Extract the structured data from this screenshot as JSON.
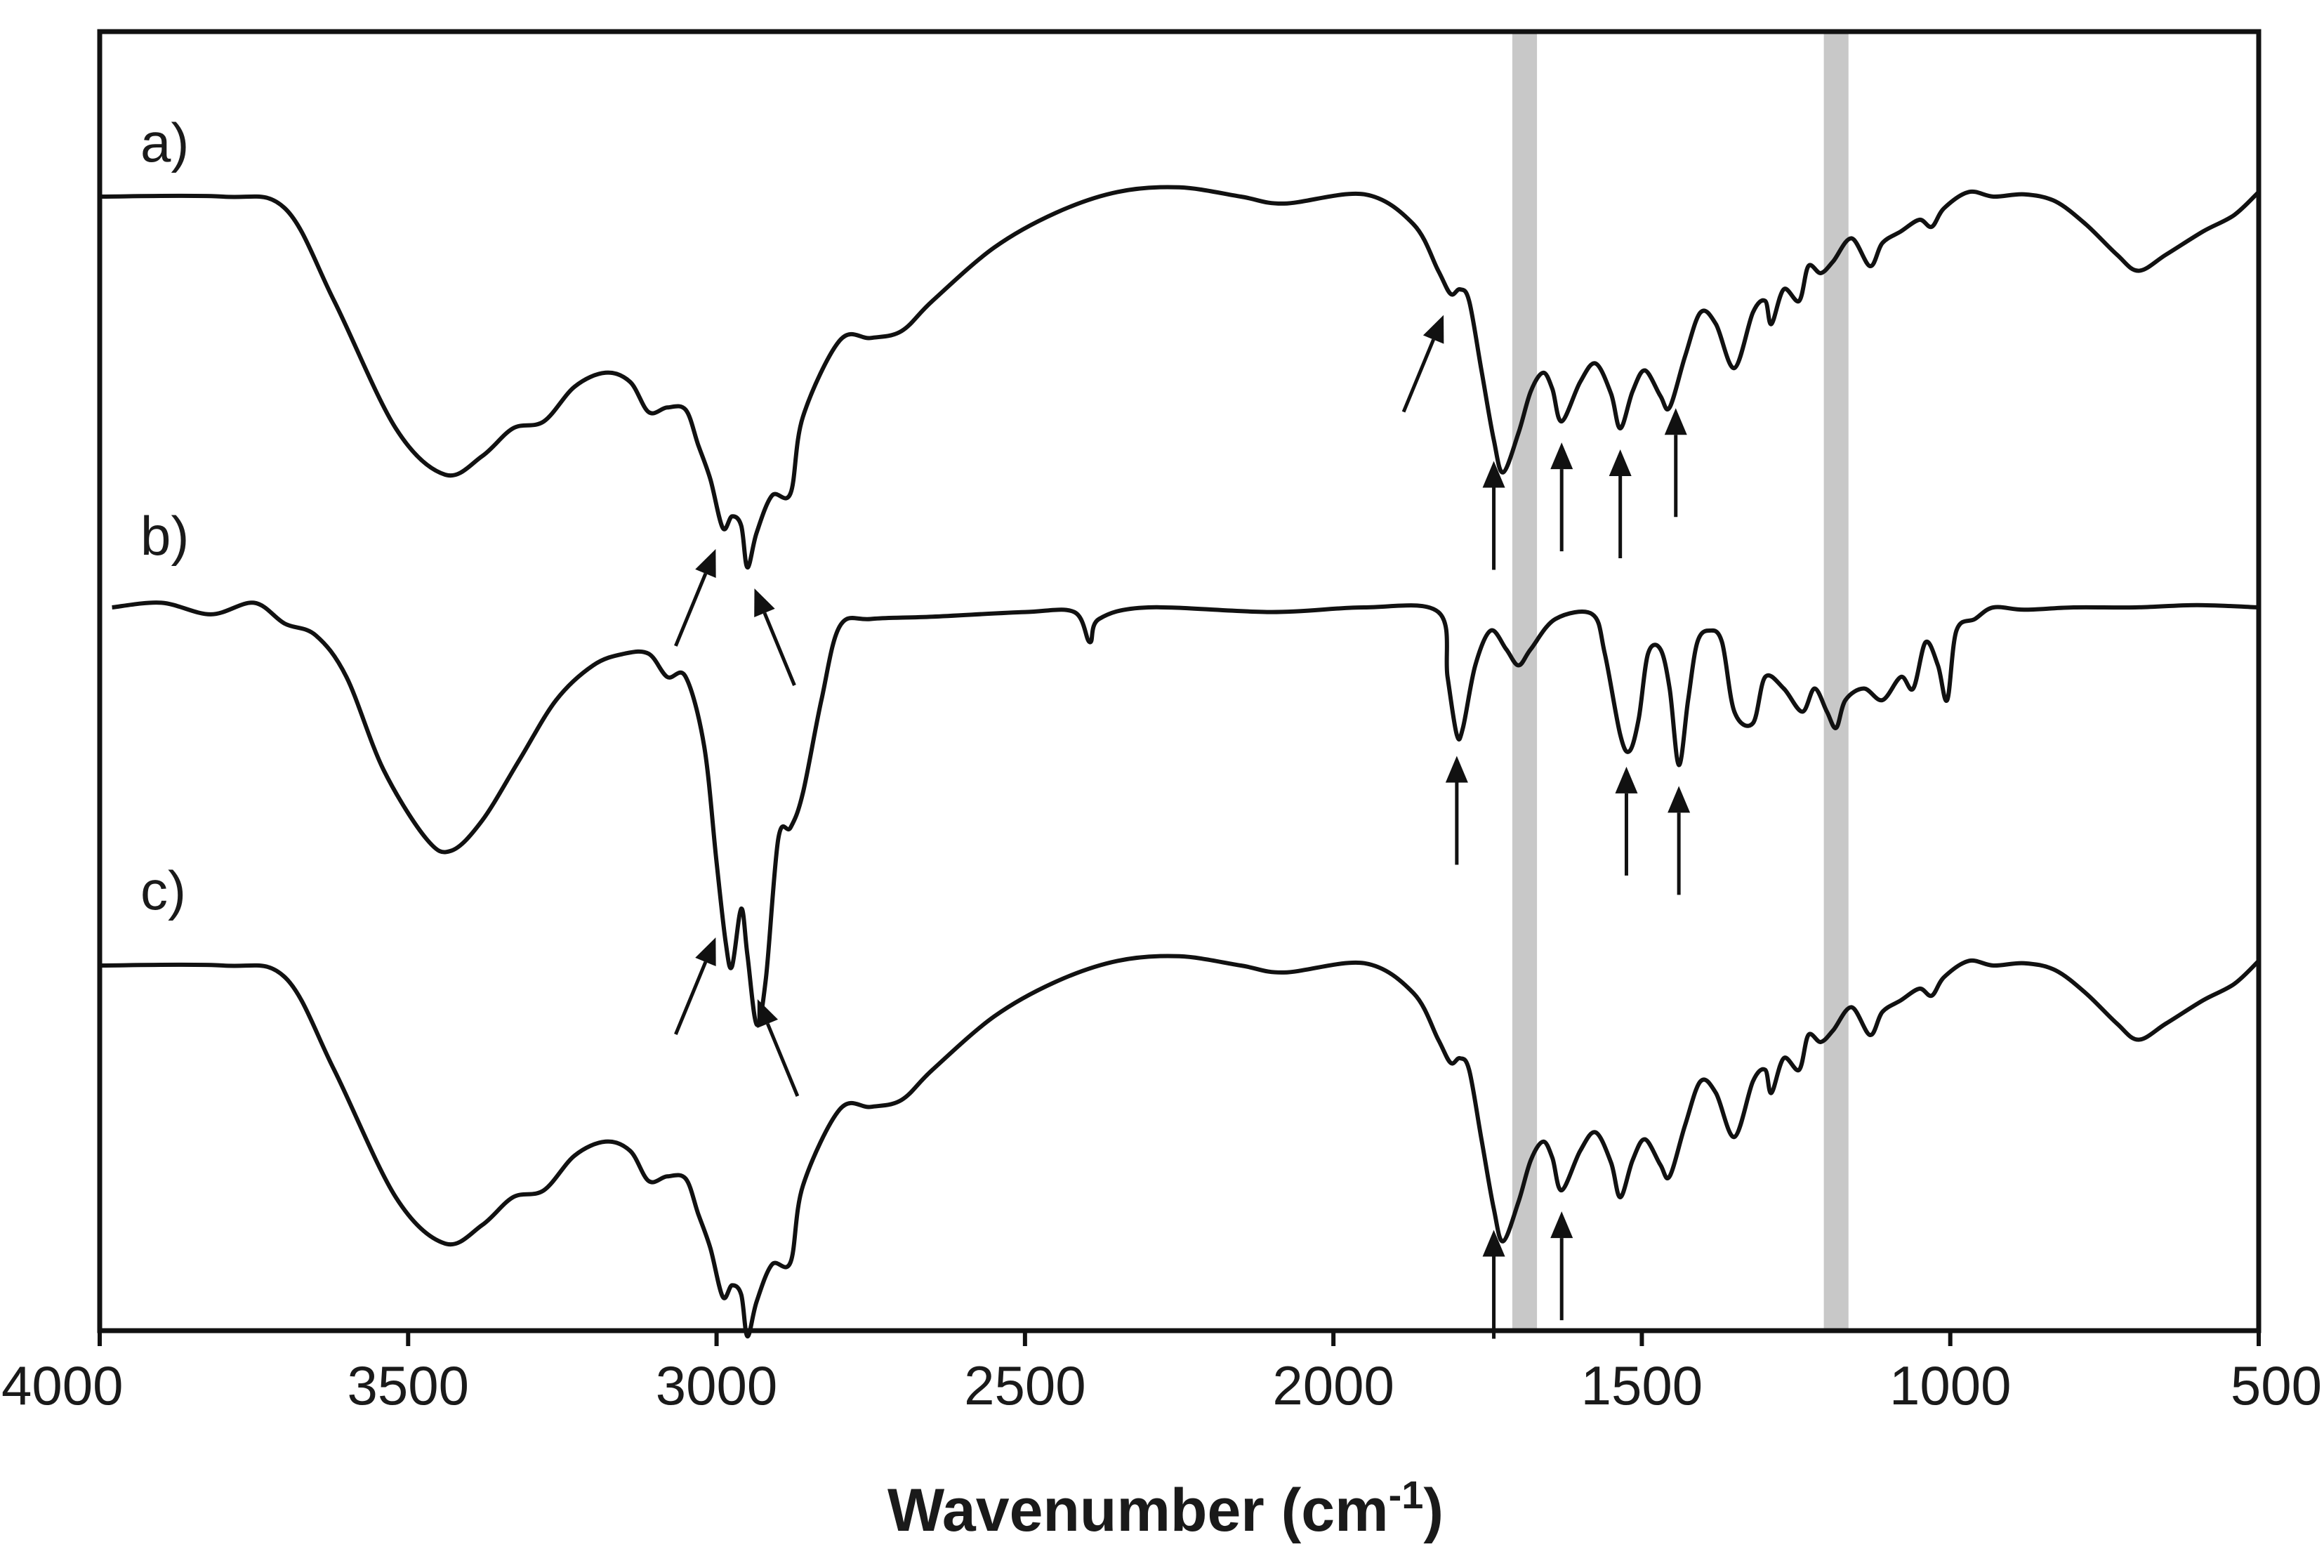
{
  "chart_data": {
    "type": "line",
    "title": "",
    "xlabel": "Wavenumber (cm",
    "xlabel_sup": "-1",
    "xlabel_close": ")",
    "ylabel": "",
    "x_reversed": true,
    "xlim": [
      4000,
      500
    ],
    "x_ticks": [
      4000,
      3500,
      3000,
      2500,
      2000,
      1500,
      1000,
      500
    ],
    "x_tick_labels": [
      "4000",
      "3500",
      "3000",
      "2500",
      "2000",
      "1500",
      "1000",
      "500"
    ],
    "y_units": "offset transmittance (arbitrary)",
    "highlight_bands": [
      {
        "center": 1690,
        "width": 40,
        "color": "#c8c8c8"
      },
      {
        "center": 1185,
        "width": 40,
        "color": "#c8c8c8"
      }
    ],
    "series": [
      {
        "name": "a)",
        "label": "a)",
        "points": [
          [
            4000,
            0
          ],
          [
            3800,
            0
          ],
          [
            3700,
            -0.05
          ],
          [
            3620,
            -0.45
          ],
          [
            3520,
            -1.0
          ],
          [
            3440,
            -1.2
          ],
          [
            3380,
            -1.12
          ],
          [
            3330,
            -1.0
          ],
          [
            3280,
            -0.97
          ],
          [
            3230,
            -0.82
          ],
          [
            3180,
            -0.76
          ],
          [
            3140,
            -0.8
          ],
          [
            3110,
            -0.93
          ],
          [
            3080,
            -0.91
          ],
          [
            3050,
            -0.92
          ],
          [
            3030,
            -1.07
          ],
          [
            3010,
            -1.22
          ],
          [
            2990,
            -1.43
          ],
          [
            2975,
            -1.38
          ],
          [
            2960,
            -1.42
          ],
          [
            2950,
            -1.6
          ],
          [
            2935,
            -1.45
          ],
          [
            2910,
            -1.29
          ],
          [
            2880,
            -1.28
          ],
          [
            2860,
            -0.95
          ],
          [
            2800,
            -0.62
          ],
          [
            2750,
            -0.61
          ],
          [
            2700,
            -0.58
          ],
          [
            2650,
            -0.45
          ],
          [
            2550,
            -0.22
          ],
          [
            2450,
            -0.07
          ],
          [
            2350,
            0.02
          ],
          [
            2250,
            0.04
          ],
          [
            2150,
            0
          ],
          [
            2080,
            -0.03
          ],
          [
            1950,
            0.01
          ],
          [
            1870,
            -0.12
          ],
          [
            1830,
            -0.32
          ],
          [
            1810,
            -0.42
          ],
          [
            1795,
            -0.4
          ],
          [
            1780,
            -0.45
          ],
          [
            1760,
            -0.75
          ],
          [
            1740,
            -1.05
          ],
          [
            1725,
            -1.19
          ],
          [
            1700,
            -1.02
          ],
          [
            1680,
            -0.84
          ],
          [
            1660,
            -0.76
          ],
          [
            1645,
            -0.83
          ],
          [
            1630,
            -0.97
          ],
          [
            1600,
            -0.8
          ],
          [
            1575,
            -0.72
          ],
          [
            1550,
            -0.85
          ],
          [
            1535,
            -1.0
          ],
          [
            1515,
            -0.84
          ],
          [
            1495,
            -0.75
          ],
          [
            1470,
            -0.86
          ],
          [
            1455,
            -0.91
          ],
          [
            1430,
            -0.69
          ],
          [
            1405,
            -0.5
          ],
          [
            1380,
            -0.55
          ],
          [
            1350,
            -0.74
          ],
          [
            1320,
            -0.5
          ],
          [
            1300,
            -0.45
          ],
          [
            1290,
            -0.55
          ],
          [
            1270,
            -0.4
          ],
          [
            1245,
            -0.45
          ],
          [
            1230,
            -0.3
          ],
          [
            1210,
            -0.33
          ],
          [
            1190,
            -0.28
          ],
          [
            1160,
            -0.18
          ],
          [
            1130,
            -0.3
          ],
          [
            1110,
            -0.2
          ],
          [
            1080,
            -0.15
          ],
          [
            1050,
            -0.1
          ],
          [
            1030,
            -0.13
          ],
          [
            1010,
            -0.05
          ],
          [
            970,
            0.02
          ],
          [
            930,
            0
          ],
          [
            880,
            0.01
          ],
          [
            830,
            -0.02
          ],
          [
            780,
            -0.12
          ],
          [
            730,
            -0.25
          ],
          [
            695,
            -0.32
          ],
          [
            650,
            -0.25
          ],
          [
            590,
            -0.15
          ],
          [
            540,
            -0.08
          ],
          [
            500,
            0.02
          ]
        ]
      },
      {
        "name": "b)",
        "label": "b)",
        "points": [
          [
            3980,
            0
          ],
          [
            3900,
            0.02
          ],
          [
            3820,
            -0.03
          ],
          [
            3750,
            0.02
          ],
          [
            3700,
            -0.07
          ],
          [
            3650,
            -0.12
          ],
          [
            3600,
            -0.3
          ],
          [
            3540,
            -0.7
          ],
          [
            3470,
            -1.0
          ],
          [
            3430,
            -1.05
          ],
          [
            3380,
            -0.92
          ],
          [
            3320,
            -0.66
          ],
          [
            3260,
            -0.4
          ],
          [
            3200,
            -0.25
          ],
          [
            3150,
            -0.2
          ],
          [
            3110,
            -0.2
          ],
          [
            3080,
            -0.3
          ],
          [
            3050,
            -0.3
          ],
          [
            3020,
            -0.6
          ],
          [
            3000,
            -1.1
          ],
          [
            2985,
            -1.45
          ],
          [
            2975,
            -1.55
          ],
          [
            2960,
            -1.3
          ],
          [
            2950,
            -1.5
          ],
          [
            2935,
            -1.8
          ],
          [
            2920,
            -1.6
          ],
          [
            2900,
            -1.0
          ],
          [
            2880,
            -0.95
          ],
          [
            2860,
            -0.8
          ],
          [
            2830,
            -0.4
          ],
          [
            2800,
            -0.08
          ],
          [
            2750,
            -0.05
          ],
          [
            2650,
            -0.04
          ],
          [
            2500,
            -0.02
          ],
          [
            2420,
            -0.02
          ],
          [
            2395,
            -0.15
          ],
          [
            2380,
            -0.05
          ],
          [
            2300,
            0
          ],
          [
            2100,
            -0.02
          ],
          [
            1950,
            0
          ],
          [
            1830,
            -0.02
          ],
          [
            1815,
            -0.3
          ],
          [
            1800,
            -0.55
          ],
          [
            1790,
            -0.52
          ],
          [
            1770,
            -0.25
          ],
          [
            1745,
            -0.1
          ],
          [
            1720,
            -0.18
          ],
          [
            1700,
            -0.25
          ],
          [
            1680,
            -0.18
          ],
          [
            1640,
            -0.05
          ],
          [
            1580,
            -0.03
          ],
          [
            1560,
            -0.2
          ],
          [
            1535,
            -0.55
          ],
          [
            1520,
            -0.62
          ],
          [
            1505,
            -0.48
          ],
          [
            1490,
            -0.2
          ],
          [
            1470,
            -0.18
          ],
          [
            1455,
            -0.35
          ],
          [
            1440,
            -0.68
          ],
          [
            1425,
            -0.4
          ],
          [
            1410,
            -0.15
          ],
          [
            1390,
            -0.1
          ],
          [
            1370,
            -0.15
          ],
          [
            1350,
            -0.45
          ],
          [
            1320,
            -0.5
          ],
          [
            1300,
            -0.3
          ],
          [
            1270,
            -0.35
          ],
          [
            1240,
            -0.45
          ],
          [
            1220,
            -0.35
          ],
          [
            1200,
            -0.45
          ],
          [
            1185,
            -0.52
          ],
          [
            1170,
            -0.4
          ],
          [
            1140,
            -0.35
          ],
          [
            1110,
            -0.4
          ],
          [
            1080,
            -0.3
          ],
          [
            1060,
            -0.35
          ],
          [
            1040,
            -0.15
          ],
          [
            1020,
            -0.25
          ],
          [
            1005,
            -0.4
          ],
          [
            990,
            -0.1
          ],
          [
            960,
            -0.05
          ],
          [
            930,
            0
          ],
          [
            880,
            -0.01
          ],
          [
            800,
            0
          ],
          [
            700,
            0
          ],
          [
            600,
            0.01
          ],
          [
            500,
            0
          ]
        ]
      },
      {
        "name": "c)",
        "label": "c)",
        "points": [
          [
            4000,
            0
          ],
          [
            3800,
            0
          ],
          [
            3700,
            -0.05
          ],
          [
            3620,
            -0.45
          ],
          [
            3520,
            -1.0
          ],
          [
            3440,
            -1.2
          ],
          [
            3380,
            -1.12
          ],
          [
            3330,
            -1.0
          ],
          [
            3280,
            -0.97
          ],
          [
            3230,
            -0.82
          ],
          [
            3180,
            -0.76
          ],
          [
            3140,
            -0.8
          ],
          [
            3110,
            -0.93
          ],
          [
            3080,
            -0.91
          ],
          [
            3050,
            -0.92
          ],
          [
            3030,
            -1.07
          ],
          [
            3010,
            -1.22
          ],
          [
            2990,
            -1.43
          ],
          [
            2975,
            -1.38
          ],
          [
            2960,
            -1.42
          ],
          [
            2950,
            -1.6
          ],
          [
            2935,
            -1.45
          ],
          [
            2910,
            -1.29
          ],
          [
            2880,
            -1.28
          ],
          [
            2860,
            -0.95
          ],
          [
            2800,
            -0.62
          ],
          [
            2750,
            -0.61
          ],
          [
            2700,
            -0.58
          ],
          [
            2650,
            -0.45
          ],
          [
            2550,
            -0.22
          ],
          [
            2450,
            -0.07
          ],
          [
            2350,
            0.02
          ],
          [
            2250,
            0.04
          ],
          [
            2150,
            0
          ],
          [
            2080,
            -0.03
          ],
          [
            1950,
            0.01
          ],
          [
            1870,
            -0.12
          ],
          [
            1830,
            -0.32
          ],
          [
            1810,
            -0.42
          ],
          [
            1795,
            -0.4
          ],
          [
            1780,
            -0.45
          ],
          [
            1760,
            -0.75
          ],
          [
            1740,
            -1.05
          ],
          [
            1725,
            -1.19
          ],
          [
            1700,
            -1.02
          ],
          [
            1680,
            -0.84
          ],
          [
            1660,
            -0.76
          ],
          [
            1645,
            -0.83
          ],
          [
            1630,
            -0.97
          ],
          [
            1600,
            -0.8
          ],
          [
            1575,
            -0.72
          ],
          [
            1550,
            -0.85
          ],
          [
            1535,
            -1.0
          ],
          [
            1515,
            -0.84
          ],
          [
            1495,
            -0.75
          ],
          [
            1470,
            -0.86
          ],
          [
            1455,
            -0.91
          ],
          [
            1430,
            -0.69
          ],
          [
            1405,
            -0.5
          ],
          [
            1380,
            -0.55
          ],
          [
            1350,
            -0.74
          ],
          [
            1320,
            -0.5
          ],
          [
            1300,
            -0.45
          ],
          [
            1290,
            -0.55
          ],
          [
            1270,
            -0.4
          ],
          [
            1245,
            -0.45
          ],
          [
            1230,
            -0.3
          ],
          [
            1210,
            -0.33
          ],
          [
            1190,
            -0.28
          ],
          [
            1160,
            -0.18
          ],
          [
            1130,
            -0.3
          ],
          [
            1110,
            -0.2
          ],
          [
            1080,
            -0.15
          ],
          [
            1050,
            -0.1
          ],
          [
            1030,
            -0.13
          ],
          [
            1010,
            -0.05
          ],
          [
            970,
            0.02
          ],
          [
            930,
            0
          ],
          [
            880,
            0.01
          ],
          [
            830,
            -0.02
          ],
          [
            780,
            -0.12
          ],
          [
            730,
            -0.25
          ],
          [
            695,
            -0.32
          ],
          [
            650,
            -0.25
          ],
          [
            590,
            -0.15
          ],
          [
            540,
            -0.08
          ],
          [
            500,
            0.02
          ]
        ]
      }
    ],
    "arrows": [
      {
        "series": 0,
        "wavenumber": 2990,
        "direction": "up-right"
      },
      {
        "series": 0,
        "wavenumber": 2950,
        "direction": "up-left"
      },
      {
        "series": 0,
        "wavenumber": 1810,
        "direction": "up-right"
      },
      {
        "series": 0,
        "wavenumber": 1740,
        "direction": "up"
      },
      {
        "series": 0,
        "wavenumber": 1630,
        "direction": "up"
      },
      {
        "series": 0,
        "wavenumber": 1535,
        "direction": "up"
      },
      {
        "series": 0,
        "wavenumber": 1445,
        "direction": "up"
      },
      {
        "series": 1,
        "wavenumber": 1800,
        "direction": "up"
      },
      {
        "series": 1,
        "wavenumber": 1525,
        "direction": "up"
      },
      {
        "series": 1,
        "wavenumber": 1440,
        "direction": "up"
      },
      {
        "series": 1,
        "wavenumber": 2990,
        "direction": "up-right"
      },
      {
        "series": 1,
        "wavenumber": 2945,
        "direction": "up-left"
      },
      {
        "series": 2,
        "wavenumber": 1740,
        "direction": "up"
      },
      {
        "series": 2,
        "wavenumber": 1630,
        "direction": "up"
      }
    ],
    "colors": {
      "line": "#111111",
      "axis": "#111111",
      "band": "#c8c8c8"
    }
  }
}
